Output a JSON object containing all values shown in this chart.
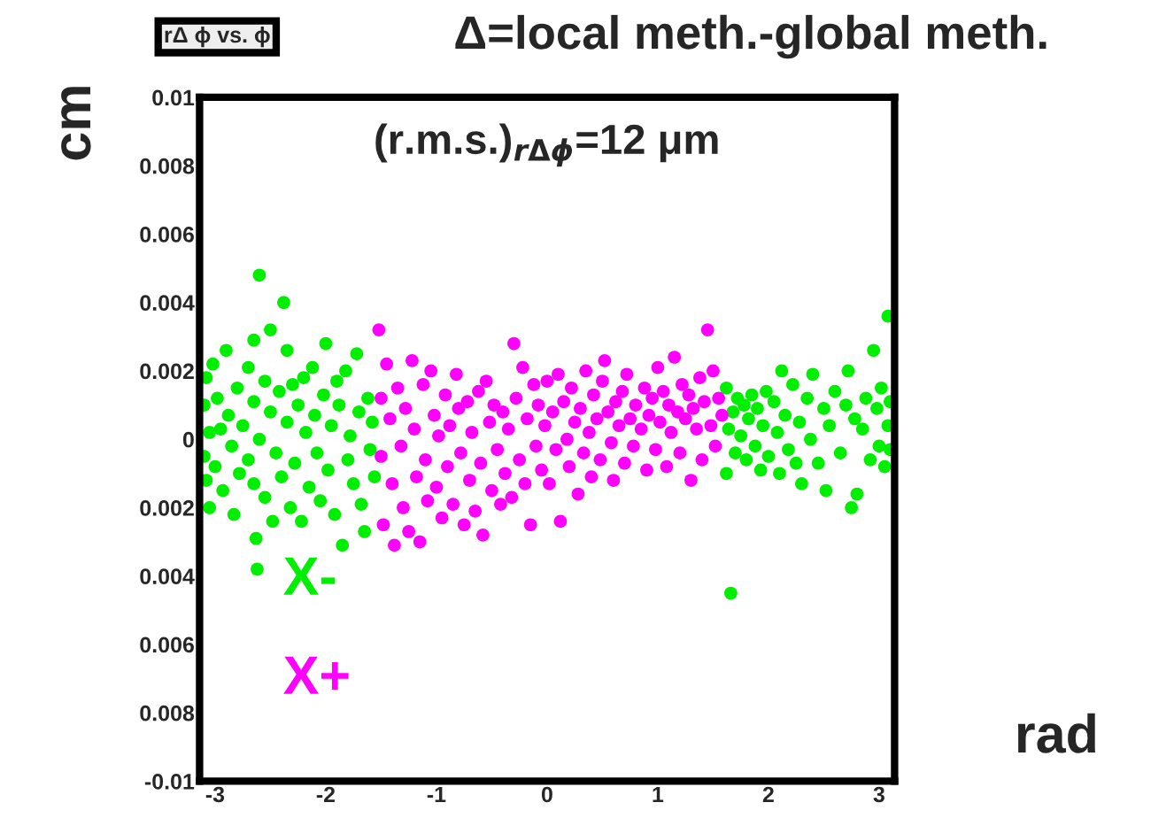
{
  "chart_data": {
    "type": "scatter",
    "title": "Δ=local meth.-global meth.",
    "xlabel": "rad",
    "ylabel": "cm",
    "annotations": [
      "rΔ ϕ vs. ϕ",
      "(r.m.s.)$_{rΔϕ}$=12 μm"
    ],
    "xlim": [
      -3.14,
      3.14
    ],
    "xticks": [
      -3,
      -2,
      -1,
      0,
      1,
      2,
      3
    ],
    "ylim": [
      -0.01,
      0.01
    ],
    "yticks": [
      {
        "value": -0.01,
        "label": "-0.01"
      },
      {
        "value": -0.008,
        "label": "0.008"
      },
      {
        "value": -0.006,
        "label": "0.006"
      },
      {
        "value": -0.004,
        "label": "0.004"
      },
      {
        "value": -0.002,
        "label": "0.002"
      },
      0,
      0.002,
      0.004,
      0.006,
      0.008,
      0.01
    ],
    "marker": "circle",
    "grid": false,
    "legend": "bottom left",
    "series": [
      {
        "name": "X-",
        "color": "#00ee00",
        "x": [
          -3.1,
          -3.1,
          -3.08,
          -3.08,
          -3.05,
          -3.05,
          -3.02,
          -3.0,
          -2.98,
          -2.95,
          -2.93,
          -2.9,
          -2.88,
          -2.85,
          -2.83,
          -2.8,
          -2.78,
          -2.75,
          -2.7,
          -2.7,
          -2.65,
          -2.65,
          -2.65,
          -2.63,
          -2.62,
          -2.6,
          -2.6,
          -2.55,
          -2.55,
          -2.5,
          -2.5,
          -2.48,
          -2.45,
          -2.42,
          -2.4,
          -2.38,
          -2.35,
          -2.35,
          -2.32,
          -2.3,
          -2.28,
          -2.25,
          -2.22,
          -2.2,
          -2.18,
          -2.15,
          -2.12,
          -2.1,
          -2.08,
          -2.05,
          -2.02,
          -2.0,
          -1.98,
          -1.95,
          -1.92,
          -1.9,
          -1.88,
          -1.85,
          -1.82,
          -1.8,
          -1.78,
          -1.75,
          -1.72,
          -1.7,
          -1.68,
          -1.65,
          -1.62,
          -1.6,
          -1.58,
          -1.56,
          1.62,
          1.62,
          1.64,
          1.66,
          1.68,
          1.7,
          1.72,
          1.75,
          1.78,
          1.8,
          1.82,
          1.85,
          1.88,
          1.9,
          1.93,
          1.95,
          1.98,
          2.0,
          2.05,
          2.08,
          2.1,
          2.12,
          2.15,
          2.18,
          2.22,
          2.25,
          2.28,
          2.3,
          2.35,
          2.38,
          2.4,
          2.45,
          2.5,
          2.52,
          2.55,
          2.6,
          2.65,
          2.7,
          2.72,
          2.75,
          2.78,
          2.8,
          2.85,
          2.88,
          2.92,
          2.95,
          2.98,
          3.0,
          3.02,
          3.05,
          3.08,
          3.08,
          3.1,
          3.1
        ],
        "values": [
          0.001,
          -0.0005,
          0.0018,
          -0.0012,
          0.0002,
          -0.002,
          0.0022,
          -0.0008,
          0.0012,
          0.0003,
          -0.0015,
          0.0026,
          0.0007,
          -0.0002,
          -0.0022,
          0.0015,
          -0.001,
          0.0004,
          0.0021,
          -0.0006,
          0.0029,
          0.0011,
          -0.0013,
          -0.0029,
          -0.0038,
          0.0048,
          0.0,
          0.0017,
          -0.0017,
          0.0032,
          0.0008,
          -0.0024,
          -0.0004,
          0.0014,
          -0.0011,
          0.004,
          0.0026,
          0.0005,
          -0.002,
          0.0016,
          -0.0007,
          0.001,
          -0.0024,
          0.0018,
          0.0002,
          -0.0014,
          0.0021,
          0.0007,
          -0.0004,
          -0.0018,
          0.0013,
          0.0028,
          -0.0009,
          0.0004,
          -0.0022,
          0.0017,
          0.001,
          -0.0031,
          0.002,
          -0.0006,
          0.0001,
          -0.0013,
          0.0025,
          0.0008,
          -0.0019,
          -0.0027,
          0.0012,
          -0.0003,
          0.0005,
          -0.0011,
          0.0015,
          -0.001,
          0.0003,
          -0.0045,
          0.0008,
          -0.0004,
          0.0012,
          0.0001,
          0.001,
          -0.0006,
          0.0006,
          0.0013,
          -0.0002,
          0.0009,
          -0.0009,
          0.0004,
          0.0014,
          -0.0005,
          0.0011,
          0.0002,
          -0.001,
          0.002,
          0.0007,
          -0.0003,
          0.0016,
          -0.0007,
          0.0005,
          -0.0013,
          0.0012,
          0.0,
          0.0019,
          -0.0007,
          0.0009,
          -0.0015,
          0.0004,
          0.0014,
          -0.0004,
          0.001,
          0.002,
          -0.002,
          0.0006,
          -0.0016,
          0.0003,
          0.0012,
          -0.0006,
          0.0026,
          0.0009,
          -0.0002,
          0.0015,
          -0.0008,
          0.0036,
          0.0004,
          0.0011,
          -0.0003
        ]
      },
      {
        "name": "X+",
        "color": "#ff00ff",
        "x": [
          -1.52,
          -1.5,
          -1.5,
          -1.48,
          -1.45,
          -1.42,
          -1.4,
          -1.38,
          -1.35,
          -1.32,
          -1.3,
          -1.28,
          -1.25,
          -1.22,
          -1.2,
          -1.18,
          -1.15,
          -1.12,
          -1.1,
          -1.08,
          -1.05,
          -1.02,
          -1.0,
          -0.98,
          -0.95,
          -0.92,
          -0.9,
          -0.88,
          -0.85,
          -0.82,
          -0.8,
          -0.78,
          -0.75,
          -0.72,
          -0.7,
          -0.68,
          -0.65,
          -0.62,
          -0.6,
          -0.58,
          -0.55,
          -0.52,
          -0.5,
          -0.48,
          -0.45,
          -0.42,
          -0.4,
          -0.38,
          -0.35,
          -0.32,
          -0.3,
          -0.28,
          -0.25,
          -0.22,
          -0.2,
          -0.18,
          -0.15,
          -0.12,
          -0.1,
          -0.08,
          -0.05,
          -0.02,
          0.0,
          0.02,
          0.05,
          0.08,
          0.1,
          0.12,
          0.15,
          0.18,
          0.2,
          0.22,
          0.25,
          0.28,
          0.3,
          0.33,
          0.35,
          0.38,
          0.4,
          0.42,
          0.45,
          0.48,
          0.5,
          0.52,
          0.55,
          0.58,
          0.6,
          0.62,
          0.65,
          0.68,
          0.7,
          0.72,
          0.75,
          0.78,
          0.8,
          0.85,
          0.88,
          0.9,
          0.92,
          0.95,
          0.98,
          1.0,
          1.02,
          1.05,
          1.08,
          1.1,
          1.12,
          1.15,
          1.18,
          1.2,
          1.22,
          1.25,
          1.28,
          1.3,
          1.32,
          1.35,
          1.38,
          1.4,
          1.42,
          1.45,
          1.48,
          1.5,
          1.52,
          1.55,
          1.58
        ],
        "values": [
          0.0032,
          0.0012,
          -0.0005,
          -0.0025,
          0.0022,
          0.0006,
          -0.0013,
          -0.0031,
          0.0015,
          -0.0002,
          -0.002,
          0.0009,
          -0.0027,
          0.0023,
          0.0003,
          -0.0011,
          -0.003,
          0.0016,
          -0.0006,
          -0.0018,
          0.002,
          0.0007,
          -0.0014,
          0.0001,
          -0.0023,
          0.0013,
          -0.0008,
          0.0004,
          -0.0019,
          0.0019,
          0.0009,
          -0.0004,
          -0.0025,
          0.0011,
          -0.0012,
          0.0002,
          -0.0021,
          0.0014,
          -0.0007,
          -0.0028,
          0.0017,
          0.0005,
          -0.0015,
          0.001,
          -0.0003,
          -0.0019,
          0.0008,
          -0.001,
          0.0003,
          -0.0017,
          0.0028,
          0.0012,
          -0.0006,
          0.0021,
          -0.0013,
          0.0006,
          -0.0025,
          0.0016,
          -0.0002,
          0.001,
          -0.0009,
          0.0004,
          0.0017,
          -0.0013,
          0.0008,
          -0.0003,
          0.0019,
          -0.0024,
          0.0011,
          0.0,
          -0.0008,
          0.0015,
          0.0005,
          -0.0016,
          0.0009,
          -0.0004,
          0.002,
          0.0002,
          -0.0011,
          0.0013,
          0.0006,
          -0.0006,
          0.0017,
          0.0023,
          0.0008,
          -0.0001,
          -0.0012,
          0.0011,
          0.0004,
          0.0014,
          -0.0007,
          0.0019,
          0.0006,
          -0.0002,
          0.001,
          0.0003,
          0.0015,
          -0.0009,
          0.0007,
          0.0012,
          -0.0003,
          0.0021,
          0.0005,
          0.0014,
          -0.0008,
          0.001,
          0.0002,
          0.0024,
          0.0008,
          -0.0004,
          0.0016,
          0.0006,
          0.0013,
          -0.0012,
          0.0009,
          0.0003,
          0.0018,
          -0.0006,
          0.0011,
          0.0032,
          0.0004,
          0.002,
          -0.0002,
          0.0012,
          0.0007
        ]
      }
    ]
  }
}
